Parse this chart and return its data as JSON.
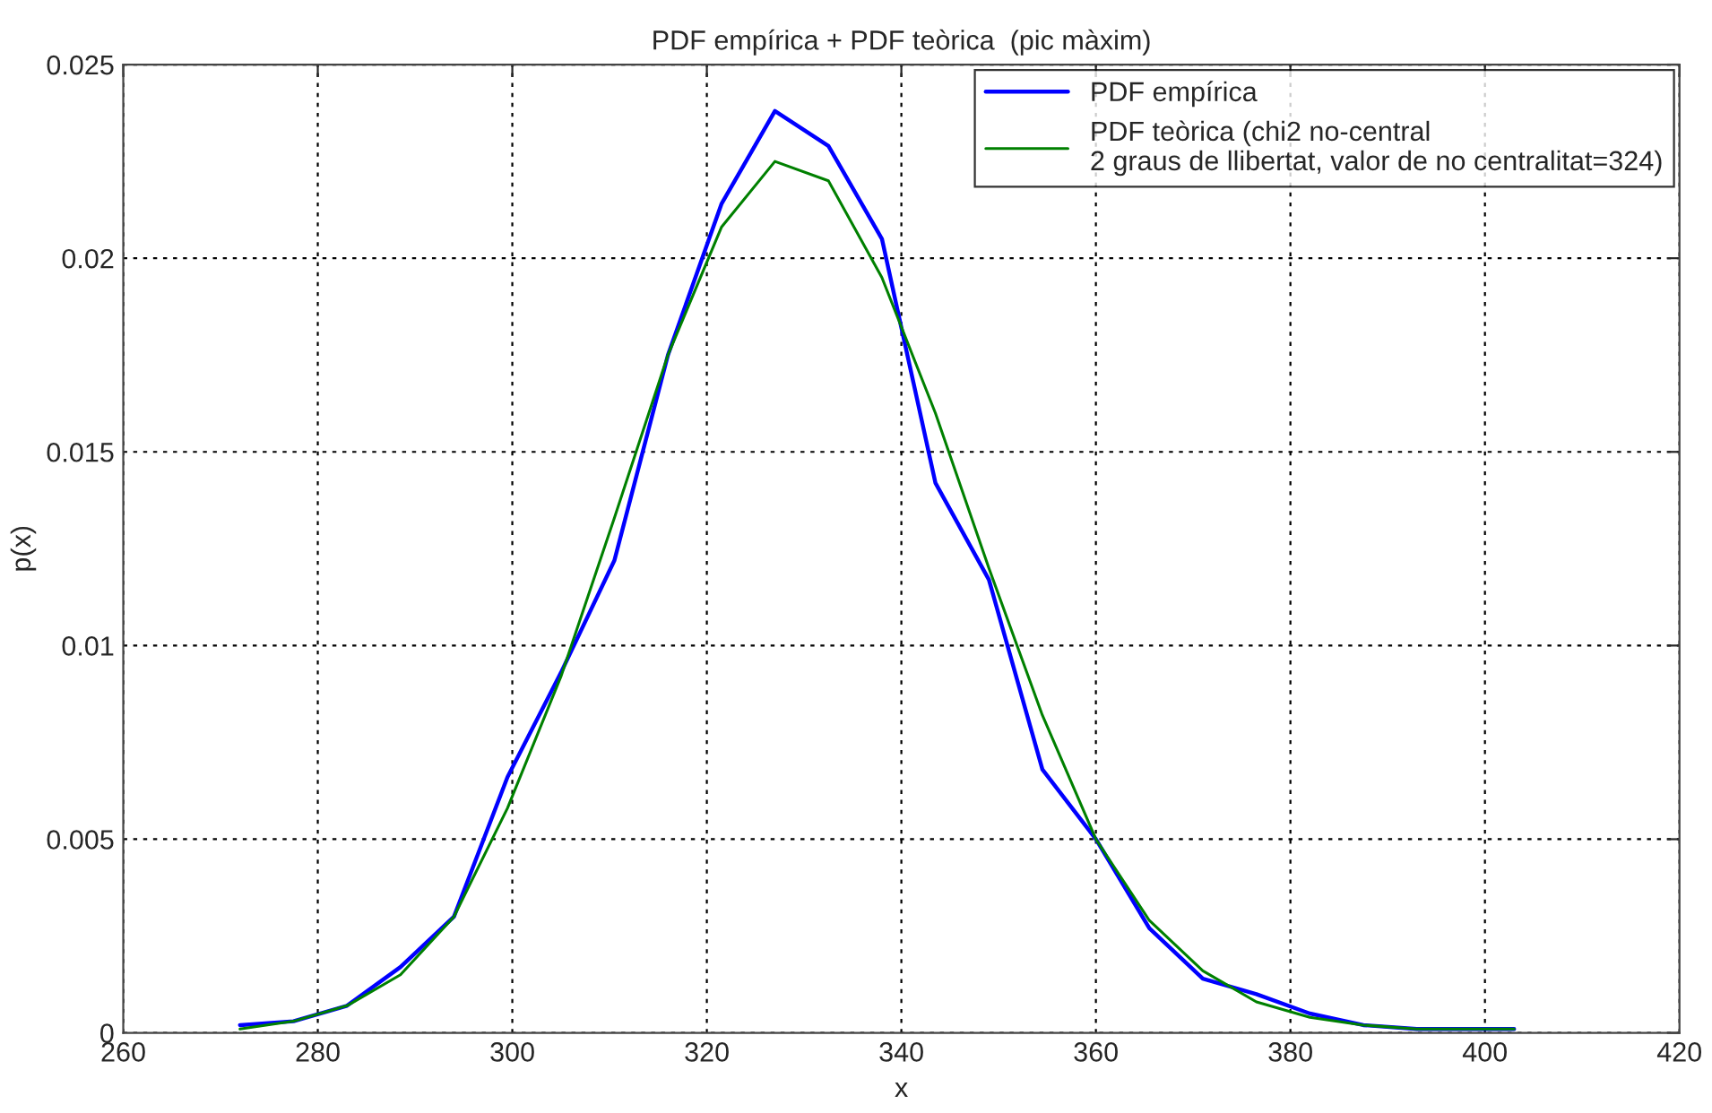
{
  "chart_data": {
    "type": "line",
    "title": "PDF empírica + PDF teòrica  (pic màxim)",
    "xlabel": "x",
    "ylabel": "p(x)",
    "x": [
      272,
      277.5,
      283,
      288.5,
      294,
      299.5,
      305,
      310.5,
      316,
      321.5,
      327,
      332.5,
      338,
      343.5,
      349,
      354.5,
      360,
      365.5,
      371,
      376.5,
      382,
      387.5,
      393,
      398.5,
      403
    ],
    "series": [
      {
        "name": "PDF empírica",
        "color": "#0000ff",
        "values": [
          0.0002,
          0.0003,
          0.0007,
          0.0017,
          0.003,
          0.0066,
          0.0093,
          0.0122,
          0.0175,
          0.0214,
          0.0238,
          0.0229,
          0.0205,
          0.0142,
          0.0117,
          0.0068,
          0.005,
          0.0027,
          0.0014,
          0.001,
          0.0005,
          0.0002,
          0.0001,
          0.0001,
          0.0001
        ]
      },
      {
        "name": "PDF teòrica (chi2 no-central\n2 graus de llibertat, valor de no centralitat=324)",
        "color": "#008000",
        "values": [
          0.0001,
          0.0003,
          0.0007,
          0.0015,
          0.003,
          0.0058,
          0.0092,
          0.0133,
          0.0175,
          0.0208,
          0.0225,
          0.022,
          0.0195,
          0.016,
          0.012,
          0.0082,
          0.005,
          0.0029,
          0.0016,
          0.0008,
          0.0004,
          0.0002,
          0.0001,
          0.0001,
          0.0001
        ]
      }
    ],
    "xlim": [
      260,
      420
    ],
    "xticks": [
      260,
      280,
      300,
      320,
      340,
      360,
      380,
      400,
      420
    ],
    "ylim": [
      0,
      0.025
    ],
    "yticks": [
      0,
      0.005,
      0.01,
      0.015,
      0.02,
      0.025
    ],
    "grid": true,
    "legend": "top right",
    "marker": "none",
    "line_style": "solid"
  }
}
